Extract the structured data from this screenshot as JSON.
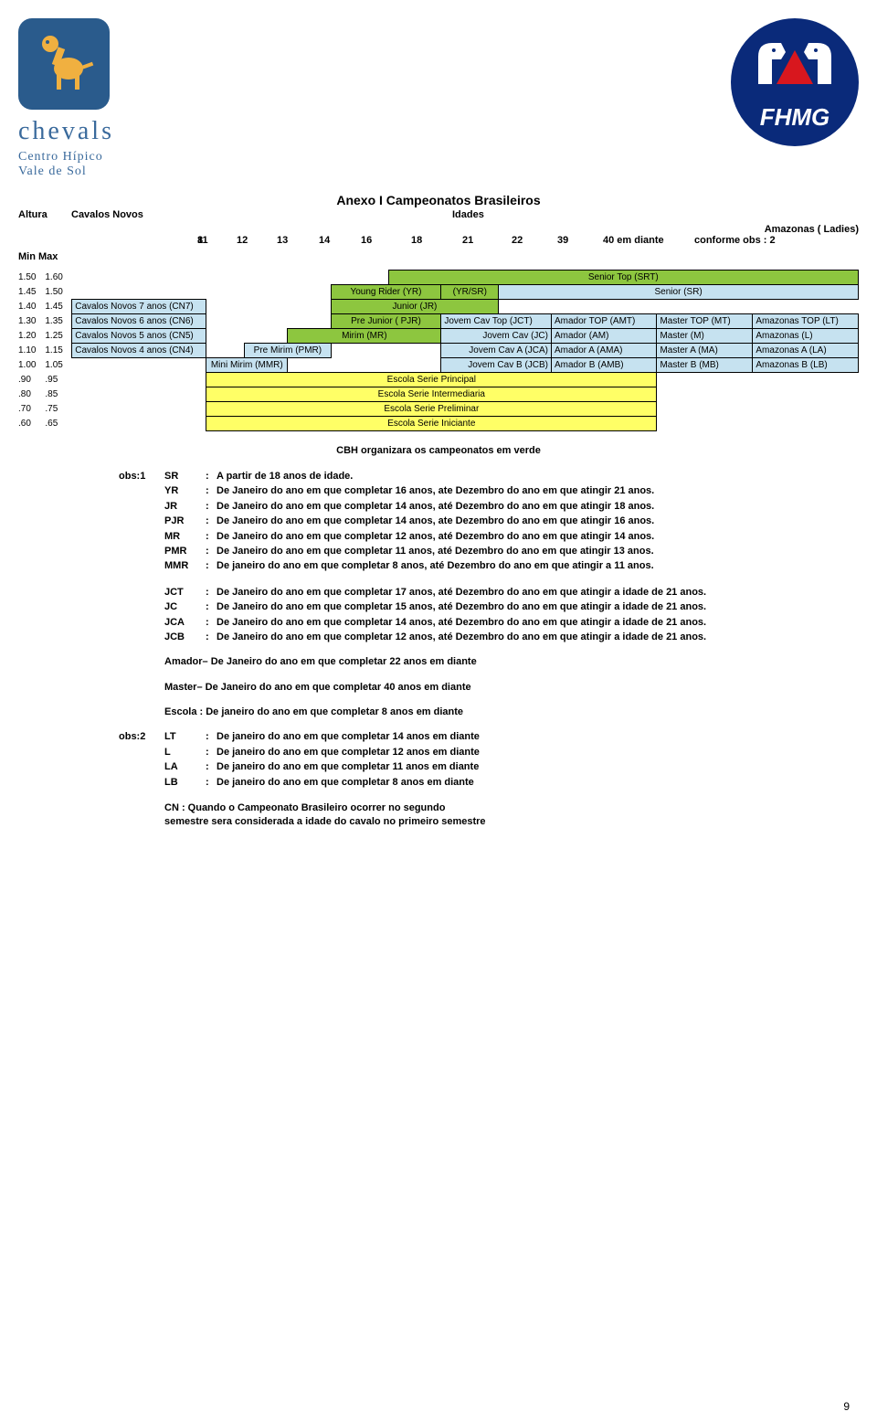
{
  "page_number": "9",
  "logos": {
    "chevals": {
      "brand": "chevals",
      "line1": "Centro Hípico",
      "line2": "Vale de Sol",
      "bg": "#2a5b8c",
      "fg": "#f0b040",
      "text_color": "#3a6a9c"
    },
    "fhmg": {
      "text": "FHMG",
      "bg": "#0a2a7a",
      "horse": "#ffffff",
      "triangle": "#d8171e"
    }
  },
  "title": "Anexo I Campeonatos Brasileiros",
  "headers": {
    "altura": "Altura",
    "cavalos": "Cavalos Novos",
    "idades": "Idades",
    "amazonas": "Amazonas ( Ladies)",
    "minmax": "Min Max",
    "ages": [
      "8",
      "11",
      "12",
      "13",
      "14",
      "16",
      "18",
      "21",
      "22",
      "39",
      "40 em diante",
      "conforme obs :  2"
    ]
  },
  "colors": {
    "green": "#8dc63f",
    "blue": "#c6e2f0",
    "yellow": "#ffff66",
    "border": "#000000"
  },
  "rows": [
    {
      "min": "1.50",
      "max": "1.60",
      "cells": [
        {
          "span": 5
        },
        {
          "span": 7,
          "cls": "green b ctr",
          "t": "Senior Top (SRT)"
        }
      ]
    },
    {
      "min": "1.45",
      "max": "1.50",
      "cells": [
        {
          "span": 4
        },
        {
          "span": 2,
          "cls": "green b ctr",
          "t": "Young Rider (YR)"
        },
        {
          "span": 1,
          "cls": "green b ctr",
          "t": "(YR/SR)"
        },
        {
          "span": 5,
          "cls": "blue b ctr",
          "t": "Senior (SR)"
        }
      ]
    },
    {
      "min": "1.40",
      "max": "1.45",
      "cells": [
        {
          "span": 1,
          "cls": "blue b lft",
          "t": "Cavalos Novos 7 anos (CN7)"
        },
        {
          "span": 3
        },
        {
          "span": 3,
          "cls": "green b ctr",
          "t": "Junior (JR)"
        },
        {
          "span": 5
        }
      ]
    },
    {
      "min": "1.30",
      "max": "1.35",
      "cells": [
        {
          "span": 1,
          "cls": "blue b lft",
          "t": "Cavalos Novos 6 anos (CN6)"
        },
        {
          "span": 3
        },
        {
          "span": 2,
          "cls": "green b ctr",
          "t": "Pre Junior ( PJR)"
        },
        {
          "span": 2,
          "cls": "blue b lft",
          "t": "Jovem Cav Top (JCT)"
        },
        {
          "span": 2,
          "cls": "blue b lft",
          "t": "Amador TOP (AMT)"
        },
        {
          "span": 1,
          "cls": "blue b lft",
          "t": "Master TOP (MT)"
        },
        {
          "span": 1,
          "cls": "blue b lft",
          "t": "Amazonas TOP (LT)"
        }
      ]
    },
    {
      "min": "1.20",
      "max": "1.25",
      "cells": [
        {
          "span": 1,
          "cls": "blue b lft",
          "t": "Cavalos Novos 5 anos (CN5)"
        },
        {
          "span": 2
        },
        {
          "span": 3,
          "cls": "green b ctr",
          "t": "Mirim      (MR)"
        },
        {
          "span": 2,
          "cls": "blue b rgt",
          "t": "Jovem Cav (JC)"
        },
        {
          "span": 2,
          "cls": "blue b lft",
          "t": "Amador (AM)"
        },
        {
          "span": 1,
          "cls": "blue b lft",
          "t": "Master  (M)"
        },
        {
          "span": 1,
          "cls": "blue b lft",
          "t": "Amazonas (L)"
        }
      ]
    },
    {
      "min": "1.10",
      "max": "1.15",
      "cells": [
        {
          "span": 1,
          "cls": "blue b lft",
          "t": "Cavalos Novos 4 anos (CN4)"
        },
        {
          "span": 1
        },
        {
          "span": 2,
          "cls": "blue b ctr",
          "t": "Pre Mirim (PMR)"
        },
        {
          "span": 2
        },
        {
          "span": 2,
          "cls": "blue b rgt",
          "t": "Jovem  Cav A (JCA)"
        },
        {
          "span": 2,
          "cls": "blue b lft",
          "t": "Amador A (AMA)"
        },
        {
          "span": 1,
          "cls": "blue b lft",
          "t": "Master A (MA)"
        },
        {
          "span": 1,
          "cls": "blue b lft",
          "t": "Amazonas A (LA)"
        }
      ]
    },
    {
      "min": "1.00",
      "max": "1.05",
      "cells": [
        {
          "span": 1
        },
        {
          "span": 2,
          "cls": "blue b ctr",
          "t": "Mini Mirim (MMR)"
        },
        {
          "span": 3
        },
        {
          "span": 2,
          "cls": "blue b rgt",
          "t": "Jovem Cav B (JCB)"
        },
        {
          "span": 2,
          "cls": "blue b lft",
          "t": "Amador B (AMB)"
        },
        {
          "span": 1,
          "cls": "blue b lft",
          "t": "Master B (MB)"
        },
        {
          "span": 1,
          "cls": "blue b lft",
          "t": "Amazonas B (LB)"
        }
      ]
    },
    {
      "min": ".90",
      "max": ".95",
      "cells": [
        {
          "span": 1
        },
        {
          "span": 9,
          "cls": "yellow b ctr",
          "t": "Escola Serie Principal"
        },
        {
          "span": 2
        }
      ]
    },
    {
      "min": ".80",
      "max": ".85",
      "cells": [
        {
          "span": 1
        },
        {
          "span": 9,
          "cls": "yellow b ctr",
          "t": "Escola Serie Intermediaria"
        },
        {
          "span": 2
        }
      ]
    },
    {
      "min": ".70",
      "max": ".75",
      "cells": [
        {
          "span": 1
        },
        {
          "span": 9,
          "cls": "yellow b ctr",
          "t": "Escola Serie Preliminar"
        },
        {
          "span": 2
        }
      ]
    },
    {
      "min": ".60",
      "max": ".65",
      "cells": [
        {
          "span": 1
        },
        {
          "span": 9,
          "cls": "yellow b ctr",
          "t": "Escola Serie Iniciante"
        },
        {
          "span": 2
        }
      ]
    }
  ],
  "note_green": "CBH organizara os campeonatos em verde",
  "obs1_label": "obs:1",
  "obs1": [
    {
      "tag": "SR",
      "t": "A partir de 18 anos de idade."
    },
    {
      "tag": "YR",
      "t": "De Janeiro do ano em que completar 16 anos, ate Dezembro do ano em que atingir  21 anos."
    },
    {
      "tag": "JR",
      "t": "De Janeiro do ano em que completar 14 anos, até Dezembro do ano em que atingir  18 anos."
    },
    {
      "tag": "PJR",
      "t": "De Janeiro do ano em  que completar 14 anos, ate Dezembro do ano em que atingir 16 anos."
    },
    {
      "tag": "MR",
      "t": "De Janeiro do ano em que completar 12 anos, até Dezembro do ano em que atingir 14 anos."
    },
    {
      "tag": "PMR",
      "t": "De Janeiro do ano em que completar 11 anos, até  Dezembro do ano em que atingir 13 anos."
    },
    {
      "tag": "MMR",
      "t": "De janeiro do ano em que completar 8 anos, até Dezembro do ano em que atingir a 11 anos."
    }
  ],
  "obs1b": [
    {
      "tag": "JCT",
      "t": "De Janeiro do ano em que completar 17 anos, até Dezembro do ano em que atingir a idade de 21 anos."
    },
    {
      "tag": "JC",
      "t": "De Janeiro do ano em que completar 15 anos, até Dezembro do ano em que atingir a idade de 21 anos."
    },
    {
      "tag": "JCA",
      "t": "De Janeiro do ano em que completar 14 anos, até Dezembro do ano em que atingir a idade de 21 anos."
    },
    {
      "tag": "JCB",
      "t": "De Janeiro do ano em que completar 12 anos, até Dezembro do ano em que atingir a idade de 21 anos."
    }
  ],
  "paras": [
    "Amador– De Janeiro do ano em que completar 22 anos em diante",
    "Master– De Janeiro do ano em que completar 40 anos em diante",
    "Escola :  De janeiro do ano em que completar 8 anos em diante"
  ],
  "obs2_label": "obs:2",
  "obs2": [
    {
      "tag": "LT",
      "t": "De janeiro do ano em que completar 14 anos em diante"
    },
    {
      "tag": "L",
      "t": "De janeiro do ano em que completar 12 anos em diante"
    },
    {
      "tag": "LA",
      "t": "De janeiro do ano em que completar 11 anos em diante"
    },
    {
      "tag": "LB",
      "t": "De janeiro do ano em que completar 8 anos em diante"
    }
  ],
  "cn_note": [
    "CN : Quando o Campeonato Brasileiro ocorrer no segundo",
    "semestre sera considerada a idade do cavalo no primeiro semestre"
  ]
}
